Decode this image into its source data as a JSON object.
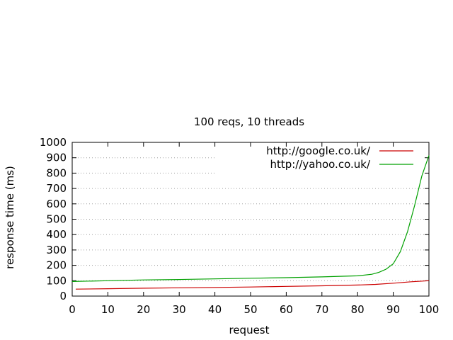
{
  "chart_data": {
    "type": "line",
    "title": "100 reqs, 10 threads",
    "xlabel": "request",
    "ylabel": "response time (ms)",
    "xlim": [
      0,
      100
    ],
    "ylim": [
      0,
      1000
    ],
    "x_ticks": [
      "0",
      "10",
      "20",
      "30",
      "40",
      "50",
      "60",
      "70",
      "80",
      "90",
      "100"
    ],
    "y_ticks": [
      "0",
      "100",
      "200",
      "300",
      "400",
      "500",
      "600",
      "700",
      "800",
      "900",
      "1000"
    ],
    "grid": {
      "horizontal": true,
      "vertical": false,
      "style": "dotted"
    },
    "legend_position": "top-right",
    "series": [
      {
        "name": "http://google.co.uk/",
        "color": "#cc0000",
        "x": [
          1,
          10,
          20,
          30,
          40,
          50,
          60,
          70,
          80,
          85,
          90,
          95,
          100
        ],
        "y": [
          45,
          48,
          51,
          54,
          56,
          59,
          63,
          67,
          72,
          76,
          84,
          93,
          100
        ]
      },
      {
        "name": "http://yahoo.co.uk/",
        "color": "#00a000",
        "x": [
          0,
          10,
          20,
          30,
          40,
          50,
          60,
          70,
          80,
          84,
          86,
          88,
          90,
          92,
          94,
          96,
          98,
          100
        ],
        "y": [
          95,
          100,
          105,
          108,
          112,
          116,
          120,
          125,
          132,
          142,
          155,
          175,
          210,
          290,
          420,
          590,
          780,
          915
        ]
      }
    ]
  }
}
